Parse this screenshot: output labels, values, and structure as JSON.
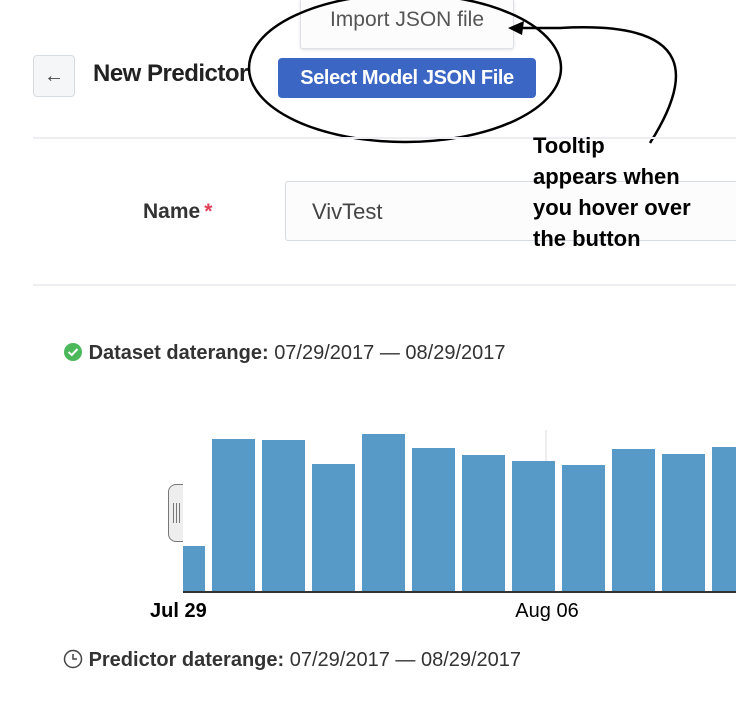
{
  "tooltip": {
    "text": "Import JSON file"
  },
  "header": {
    "back_icon": "arrow-left-icon",
    "title": "New Predictor",
    "select_button": "Select Model JSON File"
  },
  "form": {
    "name_label": "Name",
    "required_mark": "*",
    "name_value": "VivTest"
  },
  "annotation": {
    "lines": [
      "Tooltip",
      "appears when",
      "you hover over",
      "the button"
    ]
  },
  "dataset": {
    "icon": "check-circle-icon",
    "label": "Dataset daterange:",
    "value": "07/29/2017 — 08/29/2017"
  },
  "predictor": {
    "icon": "clock-icon",
    "label": "Predictor daterange:",
    "value": "07/29/2017 — 08/29/2017"
  },
  "colors": {
    "accent": "#3b66c4",
    "bar": "#5799c7",
    "success": "#4cb85c",
    "required": "#e0405a"
  },
  "chart_data": {
    "type": "bar",
    "x_tick_labels": [
      "Jul 29",
      "Aug 06"
    ],
    "values": [
      45,
      152,
      151,
      127,
      157,
      143,
      136,
      130,
      126,
      142,
      137,
      144
    ],
    "y_axis": "none",
    "grid": false
  }
}
